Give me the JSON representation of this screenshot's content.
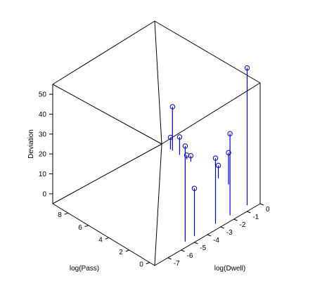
{
  "chart_data": {
    "type": "scatter3d",
    "axes": {
      "x": {
        "label": "log(Pass)",
        "ticks": [
          "0",
          "2",
          "4",
          "6",
          "8"
        ],
        "range": [
          -0.5,
          9.5
        ]
      },
      "y": {
        "label": "log(Dwell)",
        "ticks": [
          "-7",
          "-6",
          "-5",
          "-4",
          "-3",
          "-2",
          "-1",
          "0"
        ],
        "range": [
          -8,
          0
        ]
      },
      "z": {
        "label": "Deviation",
        "ticks": [
          "0",
          "10",
          "20",
          "30",
          "40",
          "50"
        ],
        "range": [
          -5,
          55
        ]
      }
    },
    "points": [
      {
        "x": 8.1,
        "y": 0,
        "z": 17
      },
      {
        "x": 8.3,
        "y": 0,
        "z": 1
      },
      {
        "x": 7.4,
        "y": 0,
        "z": 4
      },
      {
        "x": 6.7,
        "y": 0,
        "z": -3
      },
      {
        "x": 6.3,
        "y": 0,
        "z": -2
      },
      {
        "x": 3.6,
        "y": 0,
        "z": 1.5
      },
      {
        "x": 2.6,
        "y": 0,
        "z": 11
      },
      {
        "x": 0,
        "y": -4.6,
        "z": 19
      },
      {
        "x": 0,
        "y": -5.3,
        "z": 43
      },
      {
        "x": 0,
        "y": -3,
        "z": 28
      },
      {
        "x": 0,
        "y": -1.9,
        "z": 36
      },
      {
        "x": 0,
        "y": -0.6,
        "z": 64
      }
    ],
    "stem_color": "#0000cc",
    "marker": "circle"
  }
}
